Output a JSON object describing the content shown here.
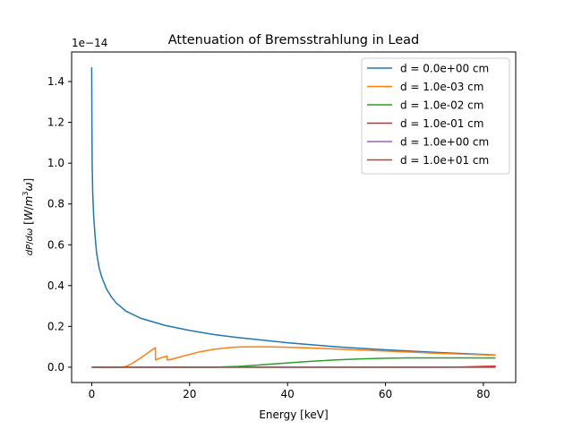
{
  "chart_data": {
    "type": "line",
    "title": "Attenuation of Bremsstrahlung in Lead",
    "xlabel": "Energy [keV]",
    "ylabel": "dP/dω [W/m³ω]",
    "y_multiplier": "1e−14",
    "xlim": [
      -4.1,
      86.6
    ],
    "ylim": [
      -0.075,
      1.545
    ],
    "x_ticks": [
      0,
      20,
      40,
      60,
      80
    ],
    "y_ticks": [
      0.0,
      0.2,
      0.4,
      0.6,
      0.8,
      1.0,
      1.2,
      1.4
    ],
    "x_tick_labels": [
      "0",
      "20",
      "40",
      "60",
      "80"
    ],
    "y_tick_labels": [
      "0.0",
      "0.2",
      "0.4",
      "0.6",
      "0.8",
      "1.0",
      "1.2",
      "1.4"
    ],
    "grid": false,
    "legend_position": "upper right",
    "series": [
      {
        "name": "d = 0.0e+00 cm",
        "color": "#1f77b4",
        "x": [
          0.0,
          0.02,
          0.05,
          0.1,
          0.2,
          0.4,
          0.7,
          1.0,
          1.5,
          2.0,
          3.0,
          4.0,
          5.0,
          7.0,
          10.0,
          15.0,
          20.0,
          25.0,
          30.0,
          40.0,
          50.0,
          60.0,
          70.0,
          82.5
        ],
        "y": [
          1.47,
          1.32,
          1.16,
          1.0,
          0.86,
          0.74,
          0.64,
          0.56,
          0.49,
          0.445,
          0.385,
          0.345,
          0.315,
          0.275,
          0.24,
          0.205,
          0.18,
          0.16,
          0.145,
          0.12,
          0.1,
          0.085,
          0.073,
          0.06
        ]
      },
      {
        "name": "d = 1.0e-03 cm",
        "color": "#ff7f0e",
        "x": [
          0.0,
          6.0,
          7.0,
          8.0,
          9.0,
          10.0,
          11.0,
          12.0,
          13.0,
          13.05,
          13.5,
          14.0,
          15.0,
          15.4,
          15.45,
          16.0,
          18.0,
          20.0,
          22.0,
          25.0,
          28.0,
          30.0,
          33.0,
          36.0,
          40.0,
          45.0,
          50.0,
          55.0,
          60.0,
          65.0,
          70.0,
          75.0,
          82.5
        ],
        "y": [
          0.0,
          0.0,
          0.004,
          0.015,
          0.03,
          0.045,
          0.062,
          0.08,
          0.095,
          0.035,
          0.04,
          0.045,
          0.052,
          0.055,
          0.035,
          0.037,
          0.05,
          0.063,
          0.075,
          0.088,
          0.096,
          0.099,
          0.1,
          0.1,
          0.098,
          0.094,
          0.089,
          0.084,
          0.079,
          0.074,
          0.069,
          0.065,
          0.059
        ]
      },
      {
        "name": "d = 1.0e-02 cm",
        "color": "#2ca02c",
        "x": [
          0.0,
          25.0,
          30.0,
          35.0,
          40.0,
          45.0,
          50.0,
          55.0,
          60.0,
          65.0,
          70.0,
          75.0,
          82.5
        ],
        "y": [
          0.0,
          0.0,
          0.004,
          0.012,
          0.021,
          0.029,
          0.036,
          0.041,
          0.044,
          0.046,
          0.046,
          0.046,
          0.045
        ]
      },
      {
        "name": "d = 1.0e-01 cm",
        "color": "#d62728",
        "x": [
          0.0,
          70.0,
          75.0,
          80.0,
          82.5
        ],
        "y": [
          0.0,
          0.0,
          0.001,
          0.004,
          0.005
        ]
      },
      {
        "name": "d = 1.0e+00 cm",
        "color": "#9467bd",
        "x": [
          0.0,
          82.5
        ],
        "y": [
          0.0,
          0.0
        ]
      },
      {
        "name": "d = 1.0e+01 cm",
        "color": "#8c564b",
        "x": [
          0.0,
          82.5
        ],
        "y": [
          0.0,
          0.0
        ]
      }
    ]
  }
}
